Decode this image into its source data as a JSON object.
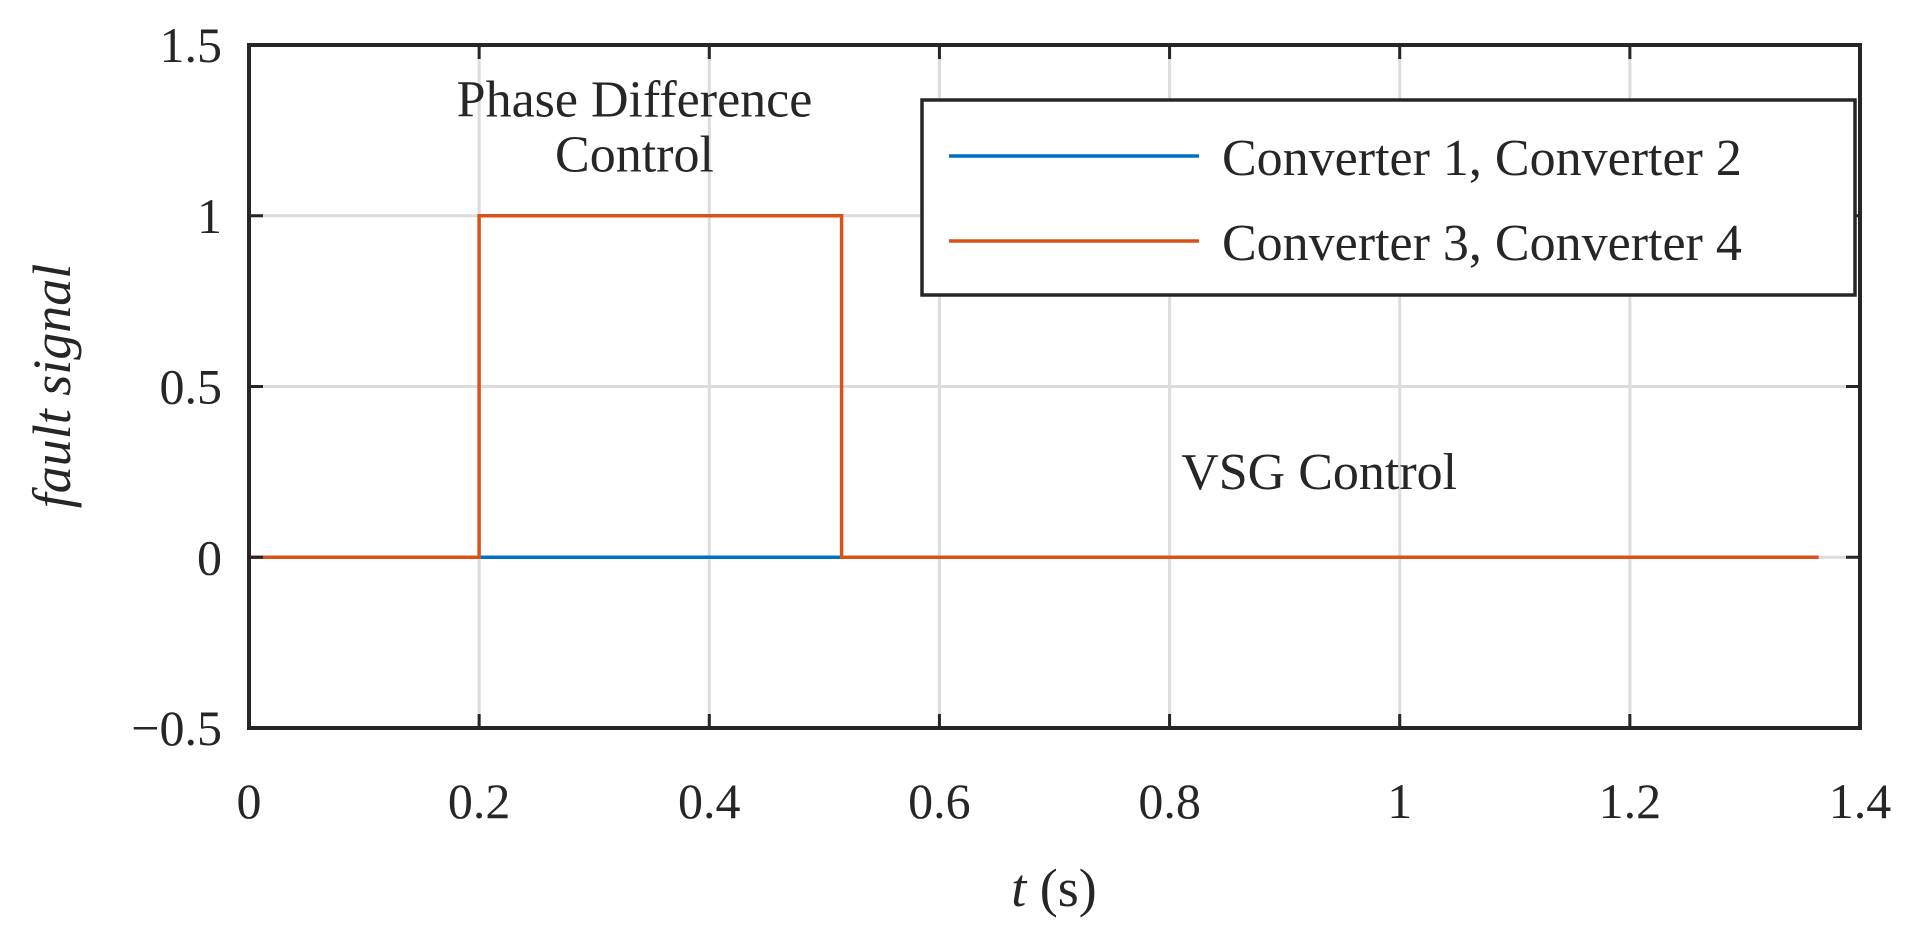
{
  "chart_data": {
    "type": "line",
    "xlabel": {
      "var": "t",
      "unit": " (s)"
    },
    "ylabel": "fault signal",
    "xlim": [
      0,
      1.4
    ],
    "ylim": [
      -0.5,
      1.5
    ],
    "xticks": [
      0,
      0.2,
      0.4,
      0.6,
      0.8,
      1,
      1.2,
      1.4
    ],
    "xtick_labels": [
      "0",
      "0.2",
      "0.4",
      "0.6",
      "0.8",
      "1",
      "1.2",
      "1.4"
    ],
    "yticks": [
      -0.5,
      0,
      0.5,
      1,
      1.5
    ],
    "ytick_labels": [
      "−0.5",
      "0",
      "0.5",
      "1",
      "1.5"
    ],
    "grid": true,
    "legend_position": "top-right",
    "series": [
      {
        "name": "Converter 1, Converter 2",
        "color": "#0072BD",
        "x": [
          0,
          1.364
        ],
        "y": [
          0,
          0
        ]
      },
      {
        "name": "Converter 3, Converter 4",
        "color": "#D95319",
        "x": [
          0,
          0.2,
          0.2,
          0.515,
          0.515,
          1.364
        ],
        "y": [
          0,
          0,
          1,
          1,
          0,
          0
        ]
      }
    ],
    "annotations": [
      {
        "text": "Phase Difference",
        "x": 0.335,
        "y": 1.29
      },
      {
        "text": "Control",
        "x": 0.335,
        "y": 1.13
      },
      {
        "text": "VSG Control",
        "x": 0.93,
        "y": 0.2
      }
    ]
  }
}
